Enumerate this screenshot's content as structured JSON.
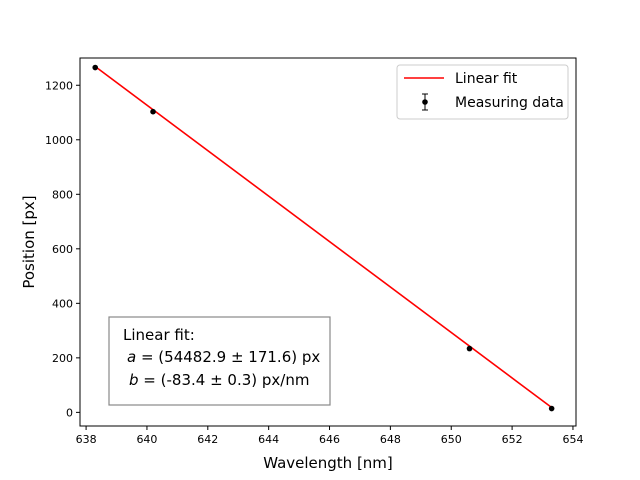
{
  "chart_data": {
    "type": "scatter",
    "xlabel": "Wavelength [nm]",
    "ylabel": "Position [px]",
    "xlim": [
      637.8,
      654.1
    ],
    "ylim": [
      -50,
      1300
    ],
    "xticks": [
      638,
      640,
      642,
      644,
      646,
      648,
      650,
      652,
      654
    ],
    "yticks": [
      0,
      200,
      400,
      600,
      800,
      1000,
      1200
    ],
    "grid": false,
    "legend_position": "top-right",
    "series": [
      {
        "name": "Linear fit",
        "kind": "line",
        "color": "#ff0000",
        "x": [
          638.3,
          653.3
        ],
        "y": [
          1268.7,
          17.7
        ]
      },
      {
        "name": "Measuring data",
        "kind": "errorbar",
        "color": "#000000",
        "x": [
          638.3,
          640.2,
          650.6,
          653.3
        ],
        "y": [
          1265,
          1103,
          234,
          14
        ]
      }
    ],
    "annotation": {
      "title": "Linear fit:",
      "line_a_var": "a",
      "line_a_value": " = (54482.9 ± 171.6) px",
      "line_b_var": "b",
      "line_b_value": " = (-83.4 ± 0.3) px/nm"
    }
  }
}
